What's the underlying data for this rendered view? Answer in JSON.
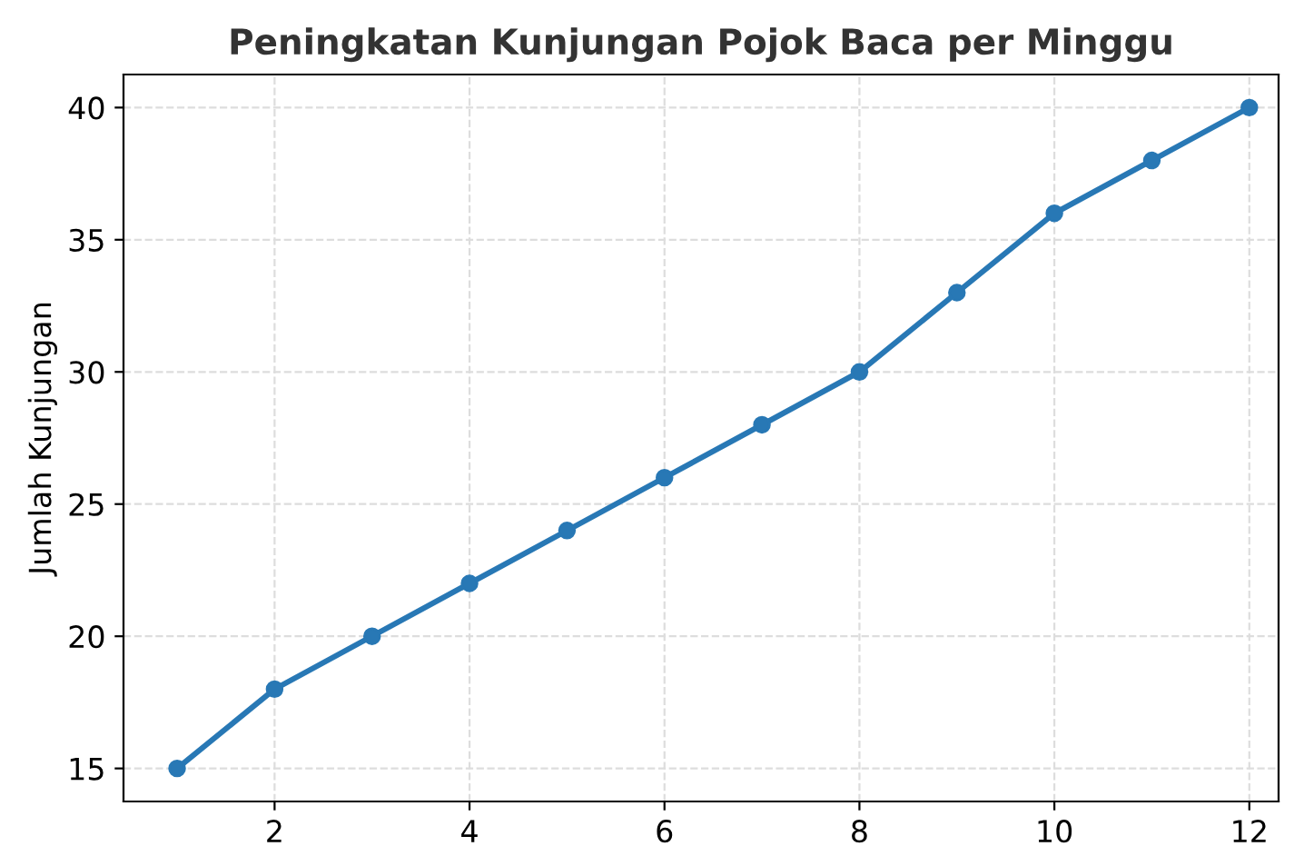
{
  "chart_data": {
    "type": "line",
    "title": "Peningkatan Kunjungan Pojok Baca per Minggu",
    "ylabel": "Jumlah Kunjungan",
    "x": [
      1,
      2,
      3,
      4,
      5,
      6,
      7,
      8,
      9,
      10,
      11,
      12
    ],
    "series": [
      {
        "color": "#2878b5",
        "values": [
          15,
          18,
          20,
          22,
          24,
          26,
          28,
          30,
          33,
          36,
          38,
          40
        ]
      }
    ],
    "xlim": [
      0.45,
      12.3
    ],
    "ylim": [
      13.75,
      41.25
    ],
    "xticks": [
      2,
      4,
      6,
      8,
      10,
      12
    ],
    "yticks": [
      15,
      20,
      25,
      30,
      35,
      40
    ],
    "grid": true,
    "marker": "circle",
    "line_style": "solid"
  }
}
